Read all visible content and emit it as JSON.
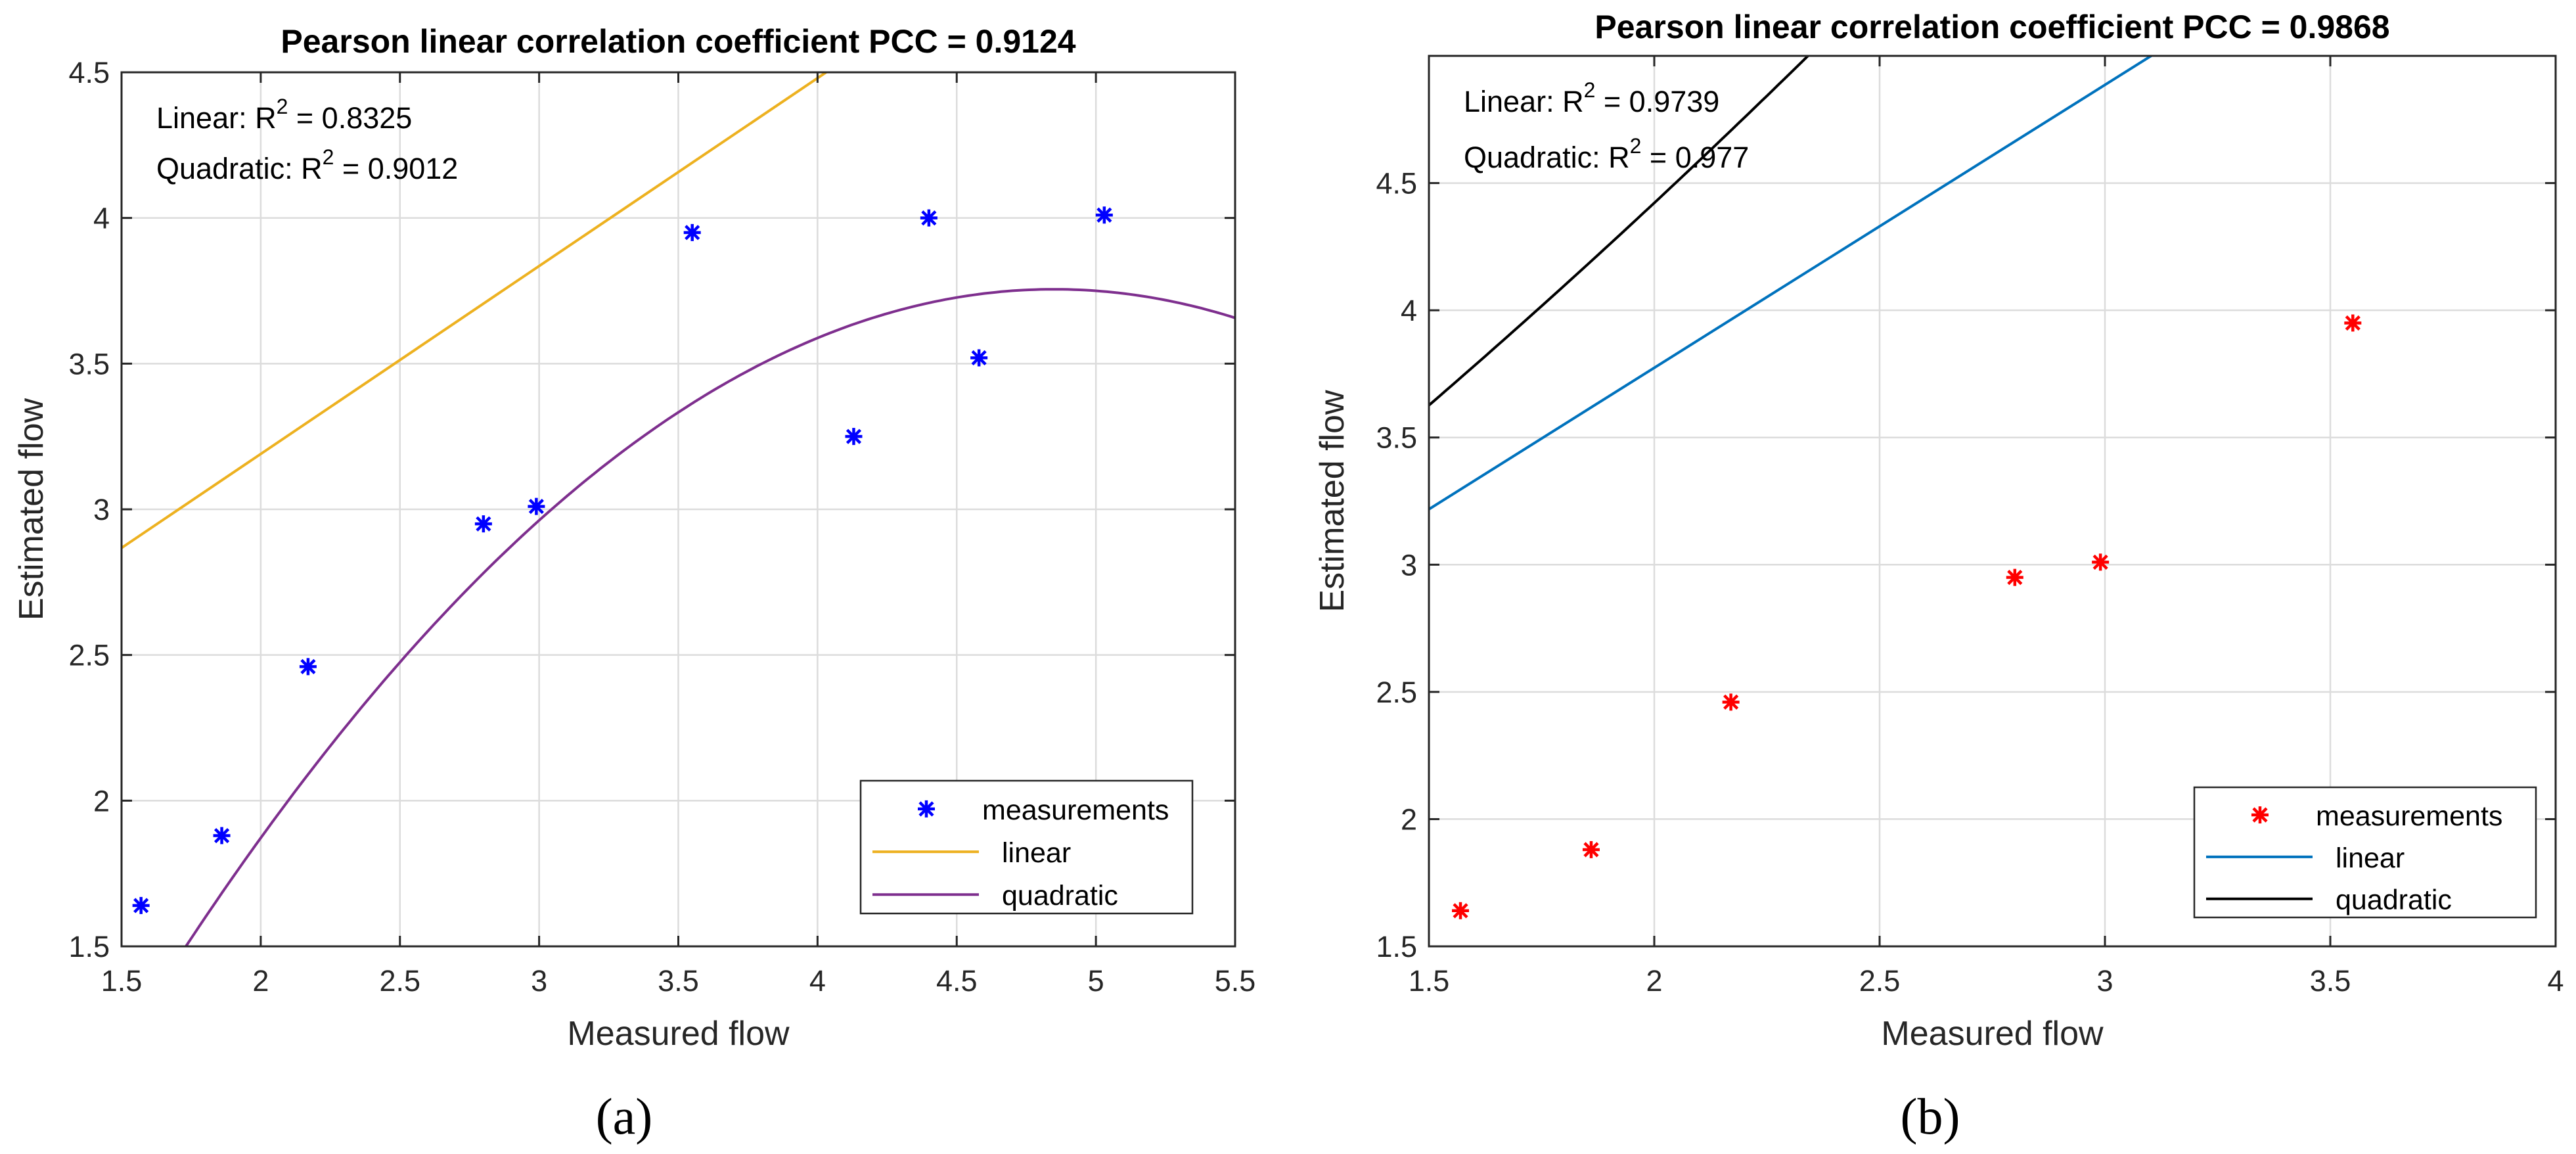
{
  "chart_data": [
    {
      "type": "scatter",
      "title": "Pearson linear correlation coefficient PCC = 0.9124",
      "xlabel": "Measured flow",
      "ylabel": "Estimated flow",
      "xlim": [
        1.5,
        5.5
      ],
      "ylim": [
        1.5,
        4.5
      ],
      "xticks": [
        1.5,
        2,
        2.5,
        3,
        3.5,
        4,
        4.5,
        5,
        5.5
      ],
      "xtick_labels": [
        "1.5",
        "2",
        "2.5",
        "3",
        "3.5",
        "4",
        "4.5",
        "5",
        "5.5"
      ],
      "yticks": [
        1.5,
        2,
        2.5,
        3,
        3.5,
        4,
        4.5
      ],
      "ytick_labels": [
        "1.5",
        "2",
        "2.5",
        "3",
        "3.5",
        "4",
        "4.5"
      ],
      "grid": true,
      "annotations": {
        "linear_prefix": "Linear: R",
        "linear_sup": "2",
        "linear_value": " = 0.8325",
        "quadratic_prefix": "Quadratic: R",
        "quadratic_sup": "2",
        "quadratic_value": " = 0.9012"
      },
      "measurements": {
        "name": "measurements",
        "color": "#0000ff",
        "x": [
          1.57,
          1.86,
          2.17,
          2.8,
          2.99,
          3.55,
          4.13,
          4.4,
          4.58,
          5.03
        ],
        "y": [
          1.64,
          1.88,
          2.46,
          2.95,
          3.01,
          3.95,
          3.25,
          4.0,
          3.52,
          4.01
        ]
      },
      "linear": {
        "name": "linear",
        "color": "#edb120",
        "coefficients": [
          1.9,
          0.645
        ]
      },
      "quadratic": {
        "name": "quadratic",
        "color": "#7e2f8e",
        "coefficients": [
          -1.7,
          2.25,
          -0.232
        ]
      },
      "legend_position": "bottom-right",
      "caption": "(a)"
    },
    {
      "type": "scatter",
      "title": "Pearson linear correlation coefficient PCC = 0.9868",
      "xlabel": "Measured flow",
      "ylabel": "Estimated flow",
      "xlim": [
        1.5,
        4
      ],
      "ylim": [
        1.5,
        5
      ],
      "xticks": [
        1.5,
        2,
        2.5,
        3,
        3.5,
        4
      ],
      "xtick_labels": [
        "1.5",
        "2",
        "2.5",
        "3",
        "3.5",
        "4"
      ],
      "yticks": [
        1.5,
        2,
        2.5,
        3,
        3.5,
        4,
        4.5
      ],
      "ytick_labels": [
        "1.5",
        "2",
        "2.5",
        "3",
        "3.5",
        "4",
        "4.5"
      ],
      "grid": true,
      "annotations": {
        "linear_prefix": "Linear: R",
        "linear_sup": "2",
        "linear_value": " = 0.9739",
        "quadratic_prefix": "Quadratic: R",
        "quadratic_sup": "2",
        "quadratic_value": " = 0.977"
      },
      "measurements": {
        "name": "measurements",
        "color": "#ff0000",
        "x": [
          1.57,
          1.86,
          2.17,
          2.8,
          2.99,
          3.55
        ],
        "y": [
          1.64,
          1.88,
          2.46,
          2.95,
          3.01,
          3.95
        ]
      },
      "linear": {
        "name": "linear",
        "color": "#0072bd",
        "coefficients": [
          1.55,
          1.112
        ]
      },
      "quadratic": {
        "name": "quadratic",
        "color": "#000000",
        "coefficients": [
          1.61,
          1.1596,
          0.1232
        ]
      },
      "legend_position": "bottom-right",
      "caption": "(b)"
    }
  ]
}
